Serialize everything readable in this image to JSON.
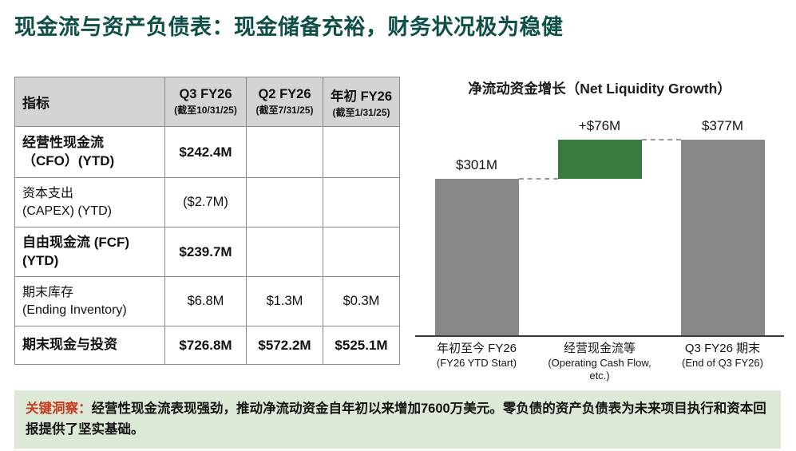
{
  "page": {
    "title": "现金流与资产负债表：现金储备充裕，财务状况极为稳健"
  },
  "table": {
    "header": {
      "metric": "指标",
      "cols": [
        {
          "title": "Q3 FY26",
          "sub": "(截至10/31/25)"
        },
        {
          "title": "Q2 FY26",
          "sub": "(截至7/31/25)"
        },
        {
          "title": "年初 FY26",
          "sub": "(截至1/31/25)"
        }
      ]
    },
    "rows": [
      {
        "label": "经营性现金流\n（CFO）(YTD)",
        "bold": true,
        "values": [
          "$242.4M",
          "",
          ""
        ]
      },
      {
        "label": "资本支出\n(CAPEX) (YTD)",
        "bold": false,
        "values": [
          "($2.7M)",
          "",
          ""
        ]
      },
      {
        "label": "自由现金流 (FCF)\n(YTD)",
        "bold": true,
        "values": [
          "$239.7M",
          "",
          ""
        ]
      },
      {
        "label": "期末库存\n(Ending Inventory)",
        "bold": false,
        "values": [
          "$6.8M",
          "$1.3M",
          "$0.3M"
        ]
      },
      {
        "label": "期末现金与投资",
        "bold": true,
        "values": [
          "$726.8M",
          "$572.2M",
          "$525.1M"
        ]
      }
    ]
  },
  "chart_data": {
    "type": "bar",
    "subtype": "waterfall",
    "title": "净流动资金增长（Net Liquidity Growth）",
    "unit": "USD millions",
    "ylim": [
      0,
      400
    ],
    "grid": false,
    "legend": "none",
    "bars": [
      {
        "label_zh": "年初至今 FY26",
        "label_en": "(FY26 YTD Start)",
        "value_label": "$301M",
        "from": 0,
        "to": 301,
        "color": "#888888"
      },
      {
        "label_zh": "经营现金流等",
        "label_en": "(Operating Cash Flow, etc.)",
        "value_label": "+$76M",
        "from": 301,
        "to": 377,
        "color": "#377a3d"
      },
      {
        "label_zh": "Q3 FY26 期末",
        "label_en": "(End of Q3 FY26)",
        "value_label": "$377M",
        "from": 0,
        "to": 377,
        "color": "#888888"
      }
    ]
  },
  "insight": {
    "label": "关键洞察：",
    "text": "经营性现金流表现强劲，推动净流动资金自年初以来增加7600万美元。零负债的资产负债表为未来项目执行和资本回报提供了坚实基础。"
  },
  "colors": {
    "title": "#0e4f48",
    "bar_gray": "#888888",
    "bar_green": "#377a3d",
    "header_bg": "#d4d4d4",
    "insight_bg": "#dbe9d6",
    "insight_label": "#c43c21"
  }
}
